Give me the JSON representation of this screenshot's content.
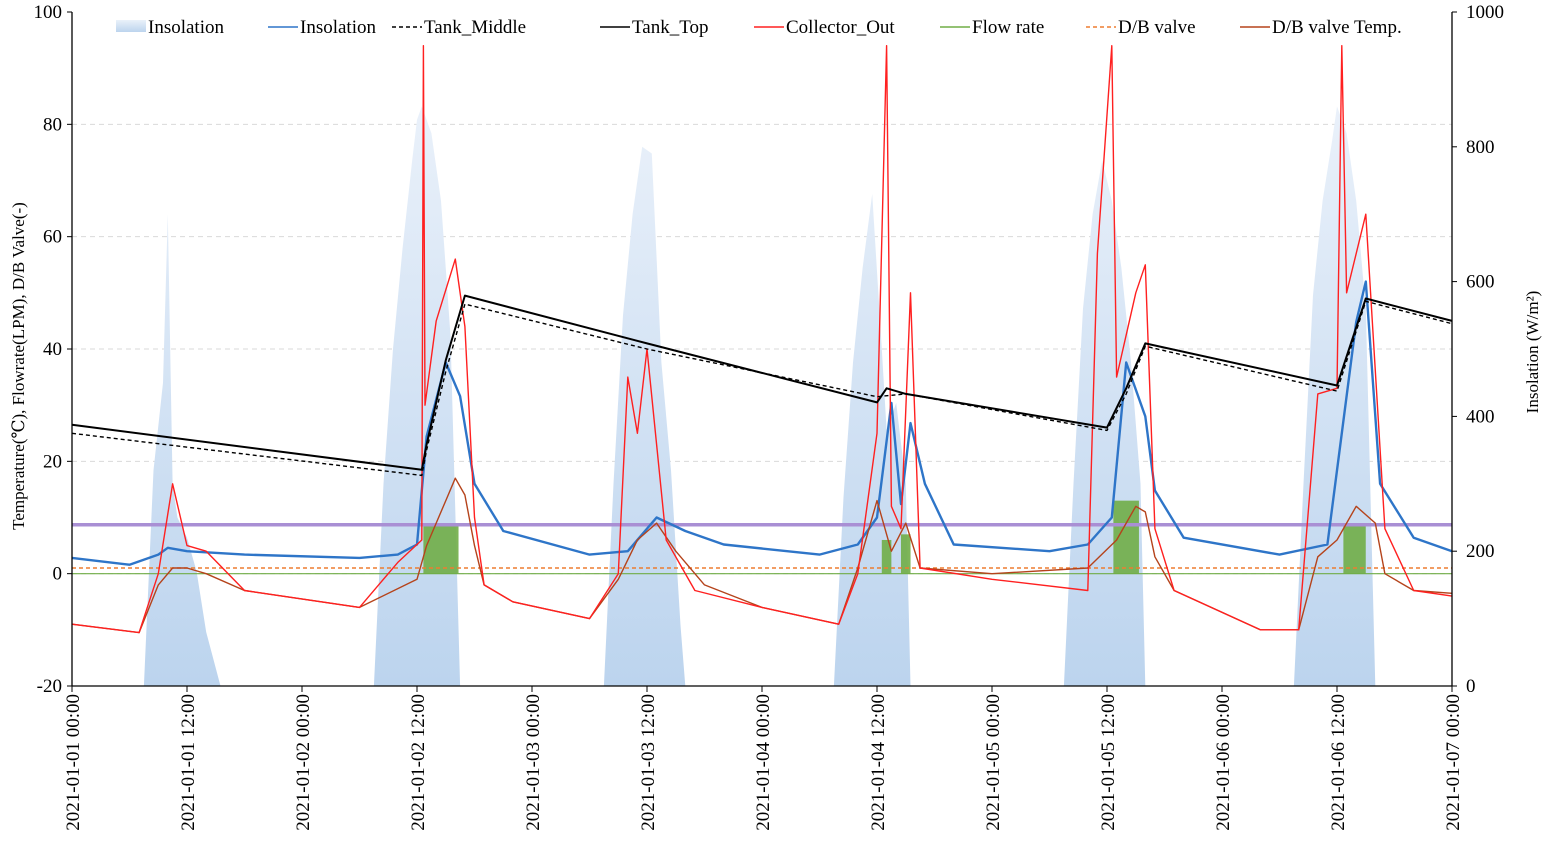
{
  "chart_data": {
    "type": "line",
    "x_start": "2021-01-01 00:00",
    "x_end": "2021-01-07 00:00",
    "x_ticks": [
      "2021-01-01 00:00",
      "2021-01-01 12:00",
      "2021-01-02 00:00",
      "2021-01-02 12:00",
      "2021-01-03 00:00",
      "2021-01-03 12:00",
      "2021-01-04 00:00",
      "2021-01-04 12:00",
      "2021-01-05 00:00",
      "2021-01-05 12:00",
      "2021-01-06 00:00",
      "2021-01-06 12:00",
      "2021-01-07 00:00"
    ],
    "y_left": {
      "label": "Temperature(℃), Flowrate(LPM), D/B Valve(-)",
      "min": -20,
      "max": 100,
      "ticks": [
        -20,
        0,
        20,
        40,
        60,
        80,
        100
      ]
    },
    "y_right": {
      "label": "Insolation (W/m²)",
      "min": 0,
      "max": 1000,
      "ticks": [
        0,
        200,
        400,
        600,
        800,
        1000
      ]
    },
    "grid": "horizontal dashed",
    "legend_position": "top",
    "reference_line": {
      "value": 8.7,
      "color": "#a98fd4"
    },
    "colors": {
      "insolation_area": "#bcd4ee",
      "insolation_line": "#2e75c8",
      "tank_middle": "#000000",
      "tank_top": "#000000",
      "collector_out": "#ff2020",
      "flow_rate": "#70ad47",
      "db_valve": "#ed7d31",
      "db_valve_temp": "#b5431b"
    },
    "series": [
      {
        "name": "Insolation",
        "kind": "area",
        "axis": "right",
        "points": [
          [
            "2021-01-01 07:30",
            0
          ],
          [
            "2021-01-01 08:30",
            320
          ],
          [
            "2021-01-01 09:30",
            450
          ],
          [
            "2021-01-01 10:00",
            700
          ],
          [
            "2021-01-01 10:30",
            300
          ],
          [
            "2021-01-01 11:00",
            250
          ],
          [
            "2021-01-01 12:00",
            220
          ],
          [
            "2021-01-01 13:00",
            170
          ],
          [
            "2021-01-01 14:00",
            80
          ],
          [
            "2021-01-01 15:30",
            0
          ],
          [
            "2021-01-02 07:30",
            0
          ],
          [
            "2021-01-02 08:30",
            300
          ],
          [
            "2021-01-02 09:30",
            500
          ],
          [
            "2021-01-02 10:30",
            650
          ],
          [
            "2021-01-02 11:30",
            780
          ],
          [
            "2021-01-02 12:00",
            840
          ],
          [
            "2021-01-02 12:30",
            860
          ],
          [
            "2021-01-02 13:30",
            820
          ],
          [
            "2021-01-02 14:30",
            720
          ],
          [
            "2021-01-02 15:30",
            520
          ],
          [
            "2021-01-02 16:30",
            0
          ],
          [
            "2021-01-03 07:30",
            0
          ],
          [
            "2021-01-03 08:30",
            300
          ],
          [
            "2021-01-03 09:30",
            550
          ],
          [
            "2021-01-03 10:30",
            700
          ],
          [
            "2021-01-03 11:30",
            800
          ],
          [
            "2021-01-03 12:30",
            790
          ],
          [
            "2021-01-03 13:30",
            480
          ],
          [
            "2021-01-03 14:30",
            320
          ],
          [
            "2021-01-03 15:30",
            90
          ],
          [
            "2021-01-03 16:00",
            0
          ],
          [
            "2021-01-04 07:30",
            0
          ],
          [
            "2021-01-04 08:30",
            280
          ],
          [
            "2021-01-04 09:30",
            480
          ],
          [
            "2021-01-04 10:30",
            620
          ],
          [
            "2021-01-04 11:30",
            730
          ],
          [
            "2021-01-04 12:30",
            500
          ],
          [
            "2021-01-04 13:00",
            380
          ],
          [
            "2021-01-04 14:00",
            420
          ],
          [
            "2021-01-04 15:00",
            300
          ],
          [
            "2021-01-04 15:30",
            0
          ],
          [
            "2021-01-05 07:30",
            0
          ],
          [
            "2021-01-05 08:30",
            300
          ],
          [
            "2021-01-05 09:30",
            560
          ],
          [
            "2021-01-05 10:30",
            700
          ],
          [
            "2021-01-05 11:30",
            780
          ],
          [
            "2021-01-05 12:30",
            720
          ],
          [
            "2021-01-05 13:30",
            620
          ],
          [
            "2021-01-05 14:30",
            480
          ],
          [
            "2021-01-05 15:30",
            300
          ],
          [
            "2021-01-05 16:00",
            0
          ],
          [
            "2021-01-06 07:30",
            0
          ],
          [
            "2021-01-06 08:30",
            300
          ],
          [
            "2021-01-06 09:30",
            580
          ],
          [
            "2021-01-06 10:30",
            720
          ],
          [
            "2021-01-06 11:30",
            810
          ],
          [
            "2021-01-06 12:00",
            860
          ],
          [
            "2021-01-06 13:00",
            820
          ],
          [
            "2021-01-06 14:00",
            720
          ],
          [
            "2021-01-06 15:00",
            560
          ],
          [
            "2021-01-06 16:00",
            0
          ]
        ]
      },
      {
        "name": "Insolation",
        "kind": "line",
        "axis": "right",
        "points": [
          [
            "2021-01-01 00:00",
            190
          ],
          [
            "2021-01-01 06:00",
            180
          ],
          [
            "2021-01-01 09:00",
            195
          ],
          [
            "2021-01-01 10:00",
            205
          ],
          [
            "2021-01-01 12:00",
            200
          ],
          [
            "2021-01-01 18:00",
            195
          ],
          [
            "2021-01-02 06:00",
            190
          ],
          [
            "2021-01-02 10:00",
            195
          ],
          [
            "2021-01-02 12:00",
            210
          ],
          [
            "2021-01-02 13:00",
            370
          ],
          [
            "2021-01-02 15:00",
            480
          ],
          [
            "2021-01-02 16:30",
            430
          ],
          [
            "2021-01-02 18:00",
            300
          ],
          [
            "2021-01-02 21:00",
            230
          ],
          [
            "2021-01-03 06:00",
            195
          ],
          [
            "2021-01-03 10:00",
            200
          ],
          [
            "2021-01-03 13:00",
            250
          ],
          [
            "2021-01-03 16:00",
            230
          ],
          [
            "2021-01-03 20:00",
            210
          ],
          [
            "2021-01-04 06:00",
            195
          ],
          [
            "2021-01-04 10:00",
            210
          ],
          [
            "2021-01-04 12:00",
            250
          ],
          [
            "2021-01-04 13:30",
            420
          ],
          [
            "2021-01-04 14:30",
            270
          ],
          [
            "2021-01-04 15:30",
            390
          ],
          [
            "2021-01-04 17:00",
            300
          ],
          [
            "2021-01-04 20:00",
            210
          ],
          [
            "2021-01-05 06:00",
            200
          ],
          [
            "2021-01-05 10:00",
            210
          ],
          [
            "2021-01-05 12:30",
            250
          ],
          [
            "2021-01-05 14:00",
            480
          ],
          [
            "2021-01-05 16:00",
            400
          ],
          [
            "2021-01-05 17:00",
            290
          ],
          [
            "2021-01-05 20:00",
            220
          ],
          [
            "2021-01-06 06:00",
            195
          ],
          [
            "2021-01-06 11:00",
            210
          ],
          [
            "2021-01-06 14:00",
            540
          ],
          [
            "2021-01-06 15:00",
            600
          ],
          [
            "2021-01-06 16:30",
            300
          ],
          [
            "2021-01-06 20:00",
            220
          ],
          [
            "2021-01-07 00:00",
            200
          ]
        ]
      },
      {
        "name": "Tank_Middle",
        "kind": "line",
        "dashed": true,
        "axis": "left",
        "points": [
          [
            "2021-01-01 00:00",
            25
          ],
          [
            "2021-01-02 12:30",
            17.5
          ],
          [
            "2021-01-02 13:00",
            22
          ],
          [
            "2021-01-02 15:00",
            36
          ],
          [
            "2021-01-02 17:00",
            48
          ],
          [
            "2021-01-03 12:00",
            40
          ],
          [
            "2021-01-04 12:00",
            31.5
          ],
          [
            "2021-01-04 15:00",
            32
          ],
          [
            "2021-01-05 12:00",
            25.5
          ],
          [
            "2021-01-05 14:00",
            32
          ],
          [
            "2021-01-05 16:00",
            40.5
          ],
          [
            "2021-01-06 12:00",
            32.5
          ],
          [
            "2021-01-06 15:00",
            48.5
          ],
          [
            "2021-01-07 00:00",
            44.5
          ]
        ]
      },
      {
        "name": "Tank_Top",
        "kind": "line",
        "axis": "left",
        "points": [
          [
            "2021-01-01 00:00",
            26.5
          ],
          [
            "2021-01-02 12:30",
            18.5
          ],
          [
            "2021-01-02 13:00",
            23
          ],
          [
            "2021-01-02 15:00",
            38
          ],
          [
            "2021-01-02 17:00",
            49.5
          ],
          [
            "2021-01-03 12:00",
            41
          ],
          [
            "2021-01-04 12:00",
            30.5
          ],
          [
            "2021-01-04 13:00",
            33
          ],
          [
            "2021-01-04 15:00",
            32
          ],
          [
            "2021-01-05 12:00",
            26
          ],
          [
            "2021-01-05 14:00",
            33
          ],
          [
            "2021-01-05 16:00",
            41
          ],
          [
            "2021-01-06 12:00",
            33.5
          ],
          [
            "2021-01-06 15:00",
            49
          ],
          [
            "2021-01-07 00:00",
            45
          ]
        ]
      },
      {
        "name": "Collector_Out",
        "kind": "line",
        "axis": "left",
        "points": [
          [
            "2021-01-01 00:00",
            -9
          ],
          [
            "2021-01-01 07:00",
            -10.5
          ],
          [
            "2021-01-01 09:00",
            0
          ],
          [
            "2021-01-01 10:30",
            16
          ],
          [
            "2021-01-01 12:00",
            5
          ],
          [
            "2021-01-01 14:00",
            4
          ],
          [
            "2021-01-01 18:00",
            -3
          ],
          [
            "2021-01-02 06:00",
            -6
          ],
          [
            "2021-01-02 10:00",
            2
          ],
          [
            "2021-01-02 12:30",
            6
          ],
          [
            "2021-01-02 12:40",
            94
          ],
          [
            "2021-01-02 12:50",
            30
          ],
          [
            "2021-01-02 14:00",
            45
          ],
          [
            "2021-01-02 16:00",
            56
          ],
          [
            "2021-01-02 17:00",
            44
          ],
          [
            "2021-01-02 18:00",
            10
          ],
          [
            "2021-01-02 19:00",
            -2
          ],
          [
            "2021-01-02 22:00",
            -5
          ],
          [
            "2021-01-03 06:00",
            -8
          ],
          [
            "2021-01-03 09:00",
            0
          ],
          [
            "2021-01-03 10:00",
            35
          ],
          [
            "2021-01-03 11:00",
            25
          ],
          [
            "2021-01-03 12:00",
            40
          ],
          [
            "2021-01-03 14:00",
            6
          ],
          [
            "2021-01-03 17:00",
            -3
          ],
          [
            "2021-01-04 00:00",
            -6
          ],
          [
            "2021-01-04 08:00",
            -9
          ],
          [
            "2021-01-04 10:00",
            0
          ],
          [
            "2021-01-04 12:00",
            25
          ],
          [
            "2021-01-04 13:00",
            94
          ],
          [
            "2021-01-04 13:30",
            12
          ],
          [
            "2021-01-04 14:30",
            8
          ],
          [
            "2021-01-04 15:30",
            50
          ],
          [
            "2021-01-04 16:30",
            1
          ],
          [
            "2021-01-05 00:00",
            -1
          ],
          [
            "2021-01-05 10:00",
            -3
          ],
          [
            "2021-01-05 11:00",
            57
          ],
          [
            "2021-01-05 12:30",
            94
          ],
          [
            "2021-01-05 13:00",
            35
          ],
          [
            "2021-01-05 15:00",
            50
          ],
          [
            "2021-01-05 16:00",
            55
          ],
          [
            "2021-01-05 17:00",
            8
          ],
          [
            "2021-01-05 19:00",
            -3
          ],
          [
            "2021-01-06 04:00",
            -10
          ],
          [
            "2021-01-06 08:00",
            -10
          ],
          [
            "2021-01-06 10:00",
            32
          ],
          [
            "2021-01-06 12:00",
            33
          ],
          [
            "2021-01-06 12:30",
            94
          ],
          [
            "2021-01-06 13:00",
            50
          ],
          [
            "2021-01-06 15:00",
            64
          ],
          [
            "2021-01-06 17:00",
            8
          ],
          [
            "2021-01-06 20:00",
            -3
          ],
          [
            "2021-01-07 00:00",
            -4
          ]
        ]
      },
      {
        "name": "Flow rate",
        "kind": "bar_blocks",
        "axis": "left",
        "points": [
          [
            "2021-01-02 12:40",
            "2021-01-02 16:20",
            9
          ],
          [
            "2021-01-04 12:30",
            "2021-01-04 13:30",
            6
          ],
          [
            "2021-01-04 14:30",
            "2021-01-04 15:30",
            7
          ],
          [
            "2021-01-05 12:40",
            "2021-01-05 15:20",
            13
          ],
          [
            "2021-01-06 12:40",
            "2021-01-06 15:00",
            9
          ]
        ]
      },
      {
        "name": "D/B valve",
        "kind": "line",
        "dashed": true,
        "axis": "left",
        "points": [
          [
            "2021-01-01 00:00",
            1
          ],
          [
            "2021-01-07 00:00",
            1
          ]
        ]
      },
      {
        "name": "D/B valve Temp.",
        "kind": "line",
        "axis": "left",
        "points": [
          [
            "2021-01-01 00:00",
            -9
          ],
          [
            "2021-01-01 07:00",
            -10.5
          ],
          [
            "2021-01-01 09:00",
            -2
          ],
          [
            "2021-01-01 10:30",
            1
          ],
          [
            "2021-01-01 12:00",
            1
          ],
          [
            "2021-01-01 14:00",
            0
          ],
          [
            "2021-01-01 18:00",
            -3
          ],
          [
            "2021-01-02 06:00",
            -6
          ],
          [
            "2021-01-02 12:00",
            -1
          ],
          [
            "2021-01-02 13:00",
            5
          ],
          [
            "2021-01-02 15:00",
            13
          ],
          [
            "2021-01-02 16:00",
            17
          ],
          [
            "2021-01-02 17:00",
            14
          ],
          [
            "2021-01-02 18:00",
            5
          ],
          [
            "2021-01-02 19:00",
            -2
          ],
          [
            "2021-01-02 22:00",
            -5
          ],
          [
            "2021-01-03 06:00",
            -8
          ],
          [
            "2021-01-03 09:00",
            -1
          ],
          [
            "2021-01-03 11:00",
            6
          ],
          [
            "2021-01-03 13:00",
            9
          ],
          [
            "2021-01-03 15:00",
            4
          ],
          [
            "2021-01-03 18:00",
            -2
          ],
          [
            "2021-01-04 00:00",
            -6
          ],
          [
            "2021-01-04 08:00",
            -9
          ],
          [
            "2021-01-04 10:00",
            1
          ],
          [
            "2021-01-04 12:00",
            13
          ],
          [
            "2021-01-04 13:30",
            4
          ],
          [
            "2021-01-04 15:00",
            9
          ],
          [
            "2021-01-04 16:30",
            1
          ],
          [
            "2021-01-05 00:00",
            0
          ],
          [
            "2021-01-05 10:00",
            1
          ],
          [
            "2021-01-05 13:00",
            6
          ],
          [
            "2021-01-05 15:00",
            12
          ],
          [
            "2021-01-05 16:00",
            11
          ],
          [
            "2021-01-05 17:00",
            3
          ],
          [
            "2021-01-05 19:00",
            -3
          ],
          [
            "2021-01-06 04:00",
            -10
          ],
          [
            "2021-01-06 08:00",
            -10
          ],
          [
            "2021-01-06 10:00",
            3
          ],
          [
            "2021-01-06 12:00",
            6
          ],
          [
            "2021-01-06 14:00",
            12
          ],
          [
            "2021-01-06 16:00",
            9
          ],
          [
            "2021-01-06 17:00",
            0
          ],
          [
            "2021-01-06 20:00",
            -3
          ],
          [
            "2021-01-07 00:00",
            -3.5
          ]
        ]
      }
    ]
  }
}
